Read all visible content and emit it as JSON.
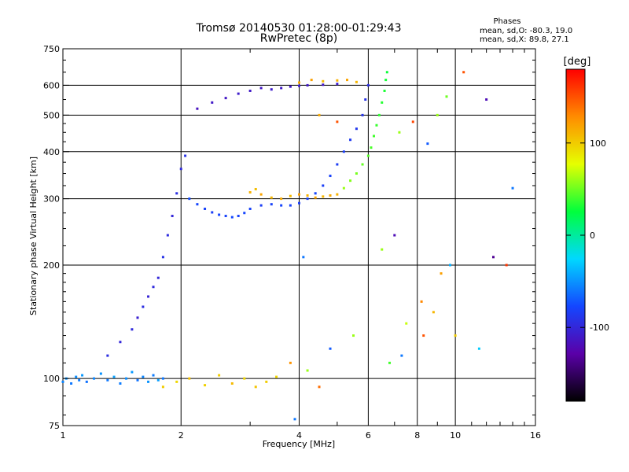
{
  "chart_data": {
    "type": "scatter",
    "title": "Tromsø 20140530 01:28:00-01:29:43",
    "subtitle": "RwPretec (8p)",
    "xlabel": "Frequency [MHz]",
    "ylabel": "Stationary phase Virtual Height [km]",
    "xscale": "log",
    "yscale": "log",
    "xlim": [
      1,
      16
    ],
    "ylim": [
      75,
      750
    ],
    "xticks": [
      1,
      2,
      4,
      6,
      8,
      10,
      16
    ],
    "yticks": [
      75,
      100,
      200,
      300,
      400,
      500,
      600,
      750
    ],
    "grid": true,
    "stats": {
      "heading": "Phases",
      "line1": "mean, sd,O: -80.3, 19.0",
      "line2": "mean, sd,X:  89.8, 27.1"
    },
    "colorbar": {
      "label": "[deg]",
      "range": [
        -180,
        180
      ],
      "ticks": [
        100,
        0,
        -100
      ],
      "colors": [
        "#000000",
        "#5a00a8",
        "#1446ff",
        "#00d8ff",
        "#00ff3c",
        "#e6ff00",
        "#ff8c00",
        "#ff0000"
      ]
    },
    "series": [
      {
        "points": [
          [
            1.0,
            98,
            -55
          ],
          [
            1.02,
            100,
            -50
          ],
          [
            1.05,
            97,
            -60
          ],
          [
            1.08,
            101,
            -52
          ],
          [
            1.1,
            99,
            -58
          ],
          [
            1.12,
            102,
            -48
          ],
          [
            1.15,
            98,
            -62
          ],
          [
            1.2,
            100,
            -55
          ],
          [
            1.25,
            103,
            -50
          ],
          [
            1.3,
            99,
            -60
          ],
          [
            1.35,
            101,
            -45
          ],
          [
            1.4,
            97,
            -58
          ],
          [
            1.45,
            100,
            -52
          ],
          [
            1.5,
            104,
            -48
          ],
          [
            1.55,
            99,
            -62
          ],
          [
            1.6,
            101,
            -55
          ],
          [
            1.65,
            98,
            -50
          ],
          [
            1.7,
            102,
            -58
          ],
          [
            1.75,
            99,
            -46
          ],
          [
            1.8,
            100,
            -60
          ]
        ]
      },
      {
        "points": [
          [
            1.3,
            115,
            -95
          ],
          [
            1.4,
            125,
            -100
          ],
          [
            1.5,
            135,
            -98
          ],
          [
            1.55,
            145,
            -105
          ],
          [
            1.6,
            155,
            -95
          ],
          [
            1.65,
            165,
            -102
          ],
          [
            1.7,
            175,
            -98
          ],
          [
            1.75,
            185,
            -100
          ],
          [
            1.8,
            210,
            -92
          ],
          [
            1.85,
            240,
            -96
          ],
          [
            1.9,
            270,
            -100
          ],
          [
            1.95,
            310,
            -94
          ],
          [
            2.0,
            360,
            -98
          ],
          [
            2.05,
            390,
            -92
          ]
        ]
      },
      {
        "points": [
          [
            2.1,
            300,
            -75
          ],
          [
            2.2,
            290,
            -78
          ],
          [
            2.3,
            282,
            -80
          ],
          [
            2.4,
            276,
            -82
          ],
          [
            2.5,
            272,
            -78
          ],
          [
            2.6,
            270,
            -80
          ],
          [
            2.7,
            268,
            -76
          ],
          [
            2.8,
            270,
            -80
          ],
          [
            2.9,
            275,
            -78
          ],
          [
            3.0,
            282,
            -80
          ],
          [
            3.2,
            288,
            -82
          ],
          [
            3.4,
            290,
            -80
          ],
          [
            3.6,
            288,
            -78
          ],
          [
            3.8,
            288,
            -80
          ],
          [
            4.0,
            292,
            -82
          ],
          [
            4.2,
            300,
            -80
          ],
          [
            4.4,
            310,
            -78
          ],
          [
            4.6,
            325,
            -82
          ],
          [
            4.8,
            345,
            -80
          ],
          [
            5.0,
            370,
            -84
          ],
          [
            5.2,
            400,
            -82
          ],
          [
            5.4,
            430,
            -86
          ],
          [
            5.6,
            460,
            -88
          ],
          [
            5.8,
            500,
            -90
          ],
          [
            5.9,
            550,
            -92
          ],
          [
            6.0,
            600,
            -94
          ]
        ]
      },
      {
        "points": [
          [
            3.0,
            312,
            112
          ],
          [
            3.1,
            318,
            106
          ],
          [
            3.2,
            308,
            118
          ],
          [
            3.4,
            302,
            110
          ],
          [
            3.6,
            300,
            115
          ],
          [
            3.8,
            305,
            108
          ],
          [
            4.0,
            308,
            120
          ],
          [
            4.2,
            306,
            112
          ],
          [
            4.4,
            302,
            118
          ],
          [
            4.6,
            304,
            110
          ],
          [
            4.8,
            306,
            115
          ],
          [
            5.0,
            308,
            112
          ]
        ]
      },
      {
        "points": [
          [
            5.2,
            320,
            60
          ],
          [
            5.4,
            335,
            55
          ],
          [
            5.6,
            350,
            52
          ],
          [
            5.8,
            370,
            48
          ],
          [
            6.0,
            390,
            45
          ],
          [
            6.1,
            410,
            42
          ],
          [
            6.2,
            440,
            40
          ],
          [
            6.3,
            470,
            38
          ],
          [
            6.4,
            500,
            36
          ],
          [
            6.5,
            540,
            34
          ],
          [
            6.6,
            580,
            32
          ],
          [
            6.65,
            620,
            30
          ],
          [
            6.7,
            650,
            28
          ]
        ]
      },
      {
        "points": [
          [
            2.2,
            520,
            -115
          ],
          [
            2.4,
            540,
            -110
          ],
          [
            2.6,
            555,
            -112
          ],
          [
            2.8,
            570,
            -108
          ],
          [
            3.0,
            580,
            -110
          ],
          [
            3.2,
            590,
            -112
          ],
          [
            3.4,
            585,
            -108
          ],
          [
            3.6,
            590,
            -110
          ],
          [
            3.8,
            595,
            -112
          ],
          [
            4.0,
            598,
            -108
          ],
          [
            4.2,
            600,
            -110
          ],
          [
            4.6,
            602,
            -112
          ],
          [
            5.0,
            605,
            -108
          ]
        ]
      },
      {
        "points": [
          [
            4.0,
            610,
            115
          ],
          [
            4.3,
            620,
            120
          ],
          [
            4.6,
            615,
            108
          ],
          [
            5.0,
            618,
            112
          ],
          [
            5.3,
            620,
            118
          ],
          [
            5.6,
            612,
            110
          ]
        ]
      },
      {
        "points": [
          [
            1.8,
            95,
            100
          ],
          [
            1.95,
            98,
            95
          ],
          [
            2.1,
            100,
            105
          ],
          [
            2.3,
            96,
            98
          ],
          [
            2.5,
            102,
            100
          ],
          [
            2.7,
            97,
            108
          ],
          [
            2.9,
            100,
            95
          ],
          [
            3.1,
            95,
            104
          ],
          [
            3.3,
            98,
            100
          ],
          [
            3.5,
            101,
            96
          ]
        ]
      },
      {
        "points": [
          [
            4.5,
            500,
            115
          ],
          [
            5.0,
            480,
            150
          ],
          [
            7.2,
            450,
            60
          ],
          [
            8.5,
            420,
            -70
          ],
          [
            9.0,
            500,
            60
          ],
          [
            9.5,
            560,
            50
          ],
          [
            10.5,
            650,
            150
          ],
          [
            12.0,
            550,
            -120
          ],
          [
            14.0,
            320,
            -60
          ],
          [
            7.8,
            480,
            155
          ],
          [
            8.8,
            150,
            110
          ],
          [
            12.5,
            210,
            -135
          ],
          [
            13.5,
            200,
            160
          ],
          [
            9.2,
            190,
            120
          ],
          [
            7.5,
            140,
            70
          ],
          [
            8.2,
            160,
            130
          ],
          [
            10.0,
            130,
            100
          ],
          [
            11.5,
            120,
            -30
          ],
          [
            6.8,
            110,
            40
          ],
          [
            5.5,
            130,
            60
          ],
          [
            4.8,
            120,
            -70
          ],
          [
            4.2,
            105,
            60
          ],
          [
            3.8,
            110,
            125
          ],
          [
            4.5,
            95,
            140
          ],
          [
            3.9,
            78,
            -60
          ],
          [
            4.1,
            210,
            -60
          ],
          [
            6.5,
            220,
            60
          ],
          [
            7.3,
            115,
            -60
          ],
          [
            7.0,
            240,
            -120
          ],
          [
            8.3,
            130,
            150
          ],
          [
            9.7,
            200,
            -40
          ]
        ]
      }
    ]
  }
}
